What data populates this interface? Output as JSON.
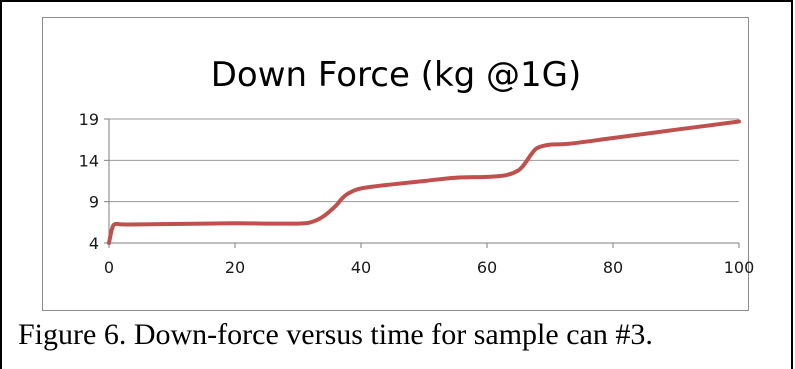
{
  "caption": "Figure 6.  Down-force versus time for sample can #3.",
  "chart_data": {
    "type": "line",
    "title": "Down Force (kg @1G)",
    "xlabel": "",
    "ylabel": "",
    "xlim": [
      0,
      100
    ],
    "ylim": [
      4,
      19
    ],
    "x_ticks": [
      0,
      20,
      40,
      60,
      80,
      100
    ],
    "y_ticks": [
      4,
      9,
      14,
      19
    ],
    "grid": "horizontal",
    "legend": "none",
    "series": [
      {
        "color": "#c0504d",
        "points": [
          [
            0,
            4.0
          ],
          [
            0.5,
            5.8
          ],
          [
            1,
            6.3
          ],
          [
            2,
            6.25
          ],
          [
            5,
            6.25
          ],
          [
            10,
            6.3
          ],
          [
            15,
            6.35
          ],
          [
            20,
            6.4
          ],
          [
            25,
            6.35
          ],
          [
            30,
            6.35
          ],
          [
            32,
            6.5
          ],
          [
            34,
            7.2
          ],
          [
            36,
            8.5
          ],
          [
            37,
            9.4
          ],
          [
            38,
            10.0
          ],
          [
            40,
            10.6
          ],
          [
            45,
            11.1
          ],
          [
            50,
            11.5
          ],
          [
            55,
            11.9
          ],
          [
            60,
            12.0
          ],
          [
            63,
            12.2
          ],
          [
            65,
            12.8
          ],
          [
            66,
            13.6
          ],
          [
            67,
            14.7
          ],
          [
            68,
            15.5
          ],
          [
            70,
            15.9
          ],
          [
            73,
            16.0
          ],
          [
            80,
            16.7
          ],
          [
            90,
            17.7
          ],
          [
            100,
            18.7
          ]
        ]
      }
    ]
  }
}
